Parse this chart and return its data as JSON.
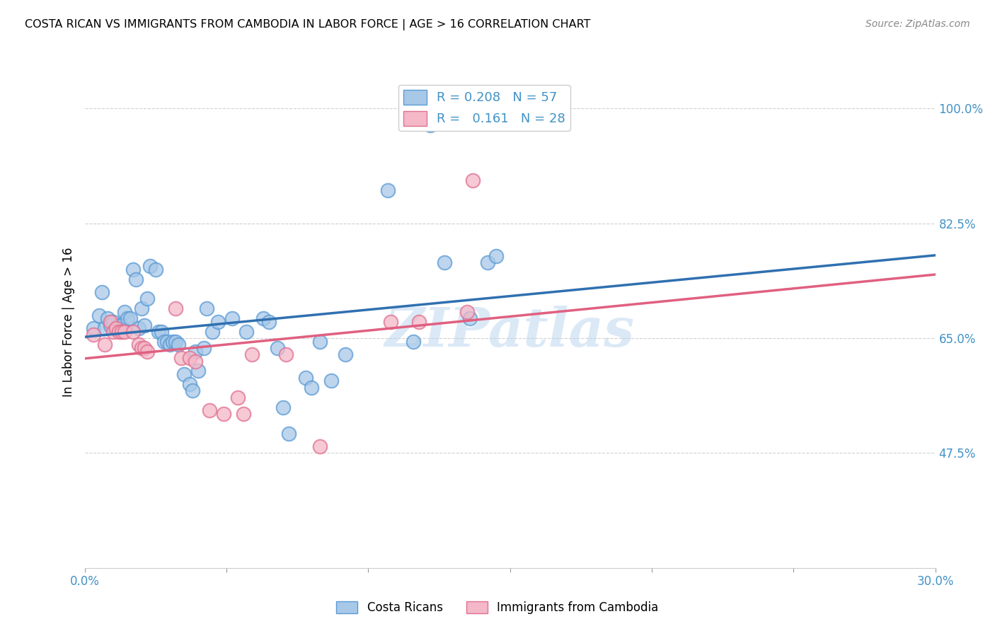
{
  "title": "COSTA RICAN VS IMMIGRANTS FROM CAMBODIA IN LABOR FORCE | AGE > 16 CORRELATION CHART",
  "source": "Source: ZipAtlas.com",
  "ylabel": "In Labor Force | Age > 16",
  "xmin": 0.0,
  "xmax": 0.3,
  "ymin": 0.3,
  "ymax": 1.05,
  "yticks": [
    0.475,
    0.65,
    0.825,
    1.0
  ],
  "ytick_labels": [
    "47.5%",
    "65.0%",
    "82.5%",
    "100.0%"
  ],
  "xtick_positions": [
    0.0,
    0.05,
    0.1,
    0.15,
    0.2,
    0.25,
    0.3
  ],
  "r_blue": 0.208,
  "n_blue": 57,
  "r_pink": 0.161,
  "n_pink": 28,
  "blue_scatter_color": "#a8c8e8",
  "blue_edge_color": "#5b9bd5",
  "pink_scatter_color": "#f4b8c8",
  "pink_edge_color": "#e07090",
  "line_blue_color": "#3070b0",
  "line_pink_color": "#e06080",
  "legend_label_blue": "Costa Ricans",
  "legend_label_pink": "Immigrants from Cambodia",
  "watermark": "ZIPatlas",
  "tick_color": "#4292c6",
  "background_color": "#ffffff",
  "grid_color": "#d0d0d0",
  "blue_scatter": [
    [
      0.003,
      0.665
    ],
    [
      0.005,
      0.685
    ],
    [
      0.006,
      0.72
    ],
    [
      0.007,
      0.665
    ],
    [
      0.008,
      0.68
    ],
    [
      0.009,
      0.67
    ],
    [
      0.01,
      0.675
    ],
    [
      0.011,
      0.665
    ],
    [
      0.012,
      0.67
    ],
    [
      0.013,
      0.67
    ],
    [
      0.014,
      0.69
    ],
    [
      0.015,
      0.68
    ],
    [
      0.016,
      0.68
    ],
    [
      0.017,
      0.755
    ],
    [
      0.018,
      0.74
    ],
    [
      0.019,
      0.665
    ],
    [
      0.02,
      0.695
    ],
    [
      0.021,
      0.67
    ],
    [
      0.022,
      0.71
    ],
    [
      0.023,
      0.76
    ],
    [
      0.025,
      0.755
    ],
    [
      0.026,
      0.66
    ],
    [
      0.027,
      0.66
    ],
    [
      0.028,
      0.645
    ],
    [
      0.029,
      0.645
    ],
    [
      0.03,
      0.64
    ],
    [
      0.031,
      0.645
    ],
    [
      0.032,
      0.645
    ],
    [
      0.033,
      0.64
    ],
    [
      0.035,
      0.595
    ],
    [
      0.037,
      0.58
    ],
    [
      0.038,
      0.57
    ],
    [
      0.039,
      0.63
    ],
    [
      0.04,
      0.6
    ],
    [
      0.042,
      0.635
    ],
    [
      0.043,
      0.695
    ],
    [
      0.045,
      0.66
    ],
    [
      0.047,
      0.675
    ],
    [
      0.052,
      0.68
    ],
    [
      0.057,
      0.66
    ],
    [
      0.063,
      0.68
    ],
    [
      0.065,
      0.675
    ],
    [
      0.068,
      0.635
    ],
    [
      0.07,
      0.545
    ],
    [
      0.072,
      0.505
    ],
    [
      0.078,
      0.59
    ],
    [
      0.08,
      0.575
    ],
    [
      0.083,
      0.645
    ],
    [
      0.087,
      0.585
    ],
    [
      0.092,
      0.625
    ],
    [
      0.107,
      0.875
    ],
    [
      0.116,
      0.645
    ],
    [
      0.122,
      0.975
    ],
    [
      0.127,
      0.765
    ],
    [
      0.136,
      0.68
    ],
    [
      0.142,
      0.765
    ],
    [
      0.145,
      0.775
    ]
  ],
  "pink_scatter": [
    [
      0.003,
      0.655
    ],
    [
      0.007,
      0.64
    ],
    [
      0.009,
      0.675
    ],
    [
      0.01,
      0.66
    ],
    [
      0.011,
      0.665
    ],
    [
      0.012,
      0.66
    ],
    [
      0.013,
      0.66
    ],
    [
      0.014,
      0.66
    ],
    [
      0.017,
      0.66
    ],
    [
      0.019,
      0.64
    ],
    [
      0.02,
      0.635
    ],
    [
      0.021,
      0.635
    ],
    [
      0.022,
      0.63
    ],
    [
      0.032,
      0.695
    ],
    [
      0.034,
      0.62
    ],
    [
      0.037,
      0.62
    ],
    [
      0.039,
      0.615
    ],
    [
      0.044,
      0.54
    ],
    [
      0.049,
      0.535
    ],
    [
      0.054,
      0.56
    ],
    [
      0.056,
      0.535
    ],
    [
      0.059,
      0.625
    ],
    [
      0.071,
      0.625
    ],
    [
      0.083,
      0.485
    ],
    [
      0.108,
      0.675
    ],
    [
      0.118,
      0.675
    ],
    [
      0.135,
      0.69
    ],
    [
      0.137,
      0.89
    ]
  ]
}
